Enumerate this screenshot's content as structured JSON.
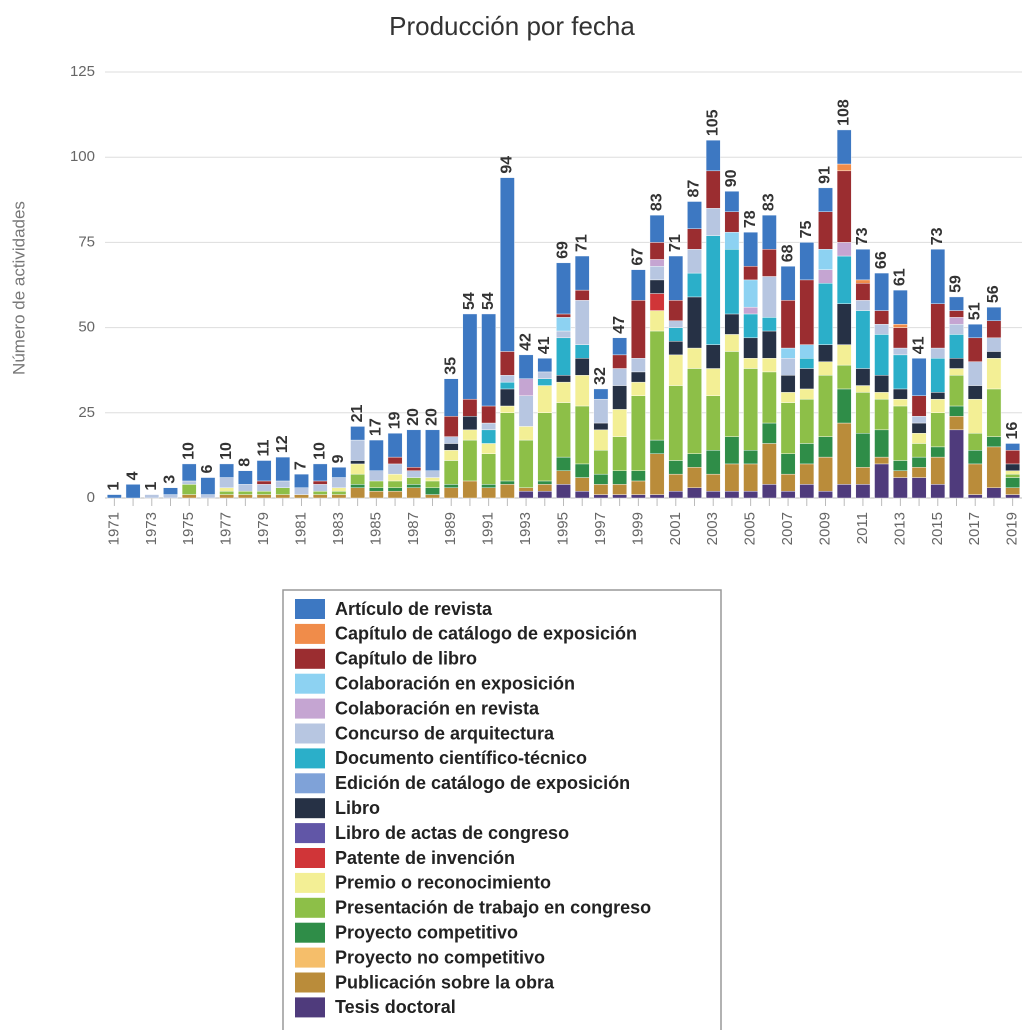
{
  "chart_data": {
    "type": "stacked_bar",
    "title": "Producción por fecha",
    "y_label": "Número de actividades",
    "categories": [
      "1971",
      null,
      "1973",
      null,
      "1975",
      null,
      "1977",
      null,
      "1979",
      null,
      "1981",
      null,
      "1983",
      null,
      "1985",
      null,
      "1987",
      null,
      "1989",
      null,
      "1991",
      null,
      "1993",
      null,
      "1995",
      null,
      "1997",
      null,
      "1999",
      null,
      "2001",
      null,
      "2003",
      null,
      "2005",
      null,
      "2007",
      null,
      "2009",
      null,
      "2011",
      null,
      "2013",
      null,
      "2015",
      null,
      "2017",
      null,
      "2019"
    ],
    "total_labels": [
      1,
      4,
      1,
      3,
      10,
      6,
      10,
      8,
      11,
      12,
      7,
      10,
      9,
      21,
      17,
      19,
      20,
      20,
      35,
      54,
      54,
      94,
      42,
      41,
      69,
      71,
      32,
      47,
      67,
      83,
      71,
      87,
      105,
      90,
      78,
      83,
      68,
      75,
      91,
      108,
      73,
      66,
      61,
      41,
      73,
      59,
      51,
      56,
      16
    ],
    "ylim": [
      0,
      125
    ],
    "yticks": [
      0,
      25,
      50,
      75,
      100,
      125
    ],
    "grid": true,
    "series": [
      {
        "name": "Artículo de revista",
        "color": "#3d78c2",
        "values": [
          1,
          4,
          0,
          2,
          5,
          5,
          4,
          4,
          6,
          7,
          4,
          5,
          3,
          4,
          9,
          7,
          11,
          12,
          11,
          25,
          27,
          51,
          7,
          4,
          15,
          10,
          3,
          5,
          9,
          8,
          13,
          8,
          9,
          6,
          10,
          10,
          10,
          11,
          7,
          10,
          9,
          11,
          10,
          11,
          16,
          4,
          4,
          4,
          2
        ]
      },
      {
        "name": "Capítulo de catálogo de exposición",
        "color": "#f08c4a",
        "values": [
          0,
          0,
          0,
          0,
          0,
          0,
          0,
          0,
          0,
          0,
          0,
          0,
          0,
          0,
          0,
          0,
          0,
          0,
          0,
          0,
          0,
          0,
          0,
          0,
          0,
          0,
          0,
          0,
          0,
          0,
          0,
          0,
          0,
          0,
          0,
          0,
          0,
          0,
          0,
          2,
          1,
          0,
          1,
          0,
          0,
          0,
          0,
          0,
          0
        ]
      },
      {
        "name": "Capítulo de libro",
        "color": "#9b2d30",
        "values": [
          0,
          0,
          0,
          0,
          0,
          0,
          0,
          0,
          1,
          0,
          0,
          1,
          0,
          0,
          0,
          2,
          1,
          0,
          6,
          5,
          5,
          7,
          0,
          0,
          1,
          3,
          0,
          4,
          17,
          5,
          6,
          6,
          11,
          6,
          4,
          8,
          14,
          19,
          11,
          21,
          5,
          4,
          6,
          6,
          13,
          2,
          7,
          5,
          4
        ]
      },
      {
        "name": "Colaboración en exposición",
        "color": "#8dd2f2",
        "values": [
          0,
          0,
          0,
          0,
          0,
          0,
          0,
          0,
          0,
          0,
          0,
          0,
          0,
          0,
          0,
          0,
          0,
          0,
          0,
          0,
          0,
          0,
          0,
          0,
          4,
          0,
          0,
          0,
          0,
          0,
          0,
          0,
          0,
          5,
          8,
          0,
          3,
          4,
          6,
          0,
          0,
          0,
          0,
          0,
          0,
          0,
          0,
          0,
          0
        ]
      },
      {
        "name": "Colaboración en revista",
        "color": "#c5a5d2",
        "values": [
          0,
          0,
          0,
          0,
          0,
          0,
          0,
          0,
          0,
          0,
          0,
          0,
          0,
          0,
          0,
          0,
          0,
          0,
          0,
          0,
          0,
          0,
          5,
          0,
          0,
          0,
          0,
          0,
          0,
          2,
          0,
          0,
          0,
          0,
          2,
          0,
          0,
          0,
          4,
          4,
          0,
          0,
          0,
          0,
          0,
          2,
          0,
          0,
          0
        ]
      },
      {
        "name": "Concurso de arquitectura",
        "color": "#b7c6e1",
        "values": [
          0,
          0,
          1,
          1,
          1,
          1,
          3,
          2,
          2,
          2,
          2,
          2,
          3,
          6,
          3,
          3,
          2,
          2,
          2,
          0,
          2,
          2,
          9,
          2,
          2,
          13,
          7,
          5,
          4,
          4,
          2,
          7,
          8,
          0,
          0,
          12,
          5,
          0,
          0,
          0,
          3,
          3,
          2,
          2,
          3,
          3,
          7,
          4,
          0
        ]
      },
      {
        "name": "Documento científico-técnico",
        "color": "#2bafc9",
        "values": [
          0,
          0,
          0,
          0,
          0,
          0,
          0,
          0,
          0,
          0,
          0,
          0,
          0,
          0,
          0,
          0,
          0,
          0,
          0,
          0,
          4,
          2,
          0,
          2,
          11,
          4,
          0,
          0,
          0,
          0,
          4,
          7,
          32,
          19,
          7,
          4,
          0,
          3,
          18,
          14,
          17,
          12,
          10,
          0,
          10,
          7,
          0,
          0,
          0
        ]
      },
      {
        "name": "Edición de catálogo de exposición",
        "color": "#7fa2d8",
        "values": [
          0,
          0,
          0,
          0,
          0,
          0,
          0,
          0,
          0,
          0,
          0,
          0,
          0,
          0,
          0,
          0,
          0,
          0,
          0,
          0,
          0,
          0,
          0,
          0,
          0,
          0,
          0,
          0,
          0,
          0,
          0,
          0,
          0,
          0,
          0,
          0,
          0,
          0,
          0,
          0,
          0,
          0,
          0,
          0,
          0,
          0,
          0,
          0,
          0
        ]
      },
      {
        "name": "Libro",
        "color": "#263145",
        "values": [
          0,
          0,
          0,
          0,
          0,
          0,
          0,
          0,
          0,
          0,
          0,
          0,
          0,
          1,
          0,
          0,
          0,
          0,
          2,
          4,
          0,
          5,
          0,
          0,
          2,
          5,
          2,
          7,
          3,
          4,
          4,
          15,
          7,
          6,
          6,
          8,
          5,
          6,
          5,
          12,
          5,
          5,
          3,
          3,
          2,
          3,
          4,
          2,
          2
        ]
      },
      {
        "name": "Libro de actas de congreso",
        "color": "#6156a7",
        "values": [
          0,
          0,
          0,
          0,
          0,
          0,
          0,
          0,
          0,
          0,
          0,
          0,
          0,
          0,
          0,
          0,
          0,
          0,
          0,
          0,
          0,
          0,
          0,
          0,
          0,
          0,
          0,
          0,
          0,
          0,
          0,
          0,
          0,
          0,
          0,
          0,
          0,
          0,
          0,
          0,
          0,
          0,
          0,
          0,
          0,
          0,
          0,
          0,
          0
        ]
      },
      {
        "name": "Patente de invención",
        "color": "#d03538",
        "values": [
          0,
          0,
          0,
          0,
          0,
          0,
          0,
          0,
          0,
          0,
          0,
          0,
          0,
          0,
          0,
          0,
          0,
          0,
          0,
          0,
          0,
          0,
          0,
          0,
          0,
          0,
          0,
          0,
          0,
          5,
          0,
          0,
          0,
          0,
          0,
          0,
          0,
          0,
          0,
          0,
          0,
          0,
          0,
          0,
          0,
          0,
          0,
          0,
          0
        ]
      },
      {
        "name": "Premio o reconocimiento",
        "color": "#f3ef95",
        "values": [
          0,
          0,
          0,
          0,
          0,
          0,
          1,
          0,
          0,
          0,
          0,
          0,
          1,
          3,
          0,
          2,
          0,
          1,
          3,
          3,
          3,
          2,
          4,
          8,
          6,
          9,
          6,
          8,
          4,
          6,
          9,
          6,
          8,
          5,
          3,
          4,
          3,
          3,
          4,
          6,
          2,
          2,
          2,
          3,
          4,
          2,
          10,
          9,
          1
        ]
      },
      {
        "name": "Presentación de trabajo en congreso",
        "color": "#8dbf48",
        "values": [
          0,
          0,
          0,
          0,
          3,
          0,
          1,
          1,
          1,
          2,
          0,
          1,
          1,
          3,
          2,
          2,
          2,
          2,
          7,
          12,
          9,
          20,
          14,
          20,
          16,
          17,
          7,
          10,
          22,
          32,
          22,
          25,
          16,
          25,
          24,
          15,
          15,
          13,
          18,
          7,
          12,
          9,
          16,
          4,
          10,
          9,
          5,
          14,
          1
        ]
      },
      {
        "name": "Proyecto competitivo",
        "color": "#2f8d48",
        "values": [
          0,
          0,
          0,
          0,
          0,
          0,
          0,
          0,
          0,
          0,
          0,
          0,
          0,
          1,
          1,
          1,
          1,
          2,
          1,
          0,
          1,
          1,
          0,
          1,
          4,
          4,
          3,
          4,
          3,
          4,
          4,
          4,
          7,
          8,
          4,
          6,
          6,
          6,
          6,
          10,
          10,
          8,
          3,
          3,
          3,
          3,
          4,
          3,
          3
        ]
      },
      {
        "name": "Proyecto no competitivo",
        "color": "#f5be6a",
        "values": [
          0,
          0,
          0,
          0,
          0,
          0,
          0,
          0,
          0,
          0,
          0,
          0,
          0,
          0,
          0,
          0,
          0,
          0,
          0,
          0,
          0,
          0,
          0,
          0,
          0,
          0,
          0,
          0,
          0,
          0,
          0,
          0,
          0,
          0,
          0,
          0,
          0,
          0,
          0,
          0,
          0,
          0,
          0,
          0,
          0,
          0,
          0,
          0,
          0
        ]
      },
      {
        "name": "Publicación sobre la obra",
        "color": "#ba8c3a",
        "values": [
          0,
          0,
          0,
          0,
          1,
          0,
          1,
          1,
          1,
          1,
          1,
          1,
          1,
          3,
          2,
          2,
          3,
          1,
          3,
          5,
          3,
          4,
          1,
          2,
          4,
          4,
          3,
          3,
          4,
          12,
          5,
          6,
          5,
          8,
          8,
          12,
          5,
          6,
          10,
          18,
          5,
          2,
          2,
          3,
          8,
          4,
          9,
          12,
          2
        ]
      },
      {
        "name": "Tesis doctoral",
        "color": "#4f3b7c",
        "values": [
          0,
          0,
          0,
          0,
          0,
          0,
          0,
          0,
          0,
          0,
          0,
          0,
          0,
          0,
          0,
          0,
          0,
          0,
          0,
          0,
          0,
          0,
          2,
          2,
          4,
          2,
          1,
          1,
          1,
          1,
          2,
          3,
          2,
          2,
          2,
          4,
          2,
          4,
          2,
          4,
          4,
          10,
          6,
          6,
          4,
          20,
          1,
          3,
          1
        ]
      }
    ]
  }
}
